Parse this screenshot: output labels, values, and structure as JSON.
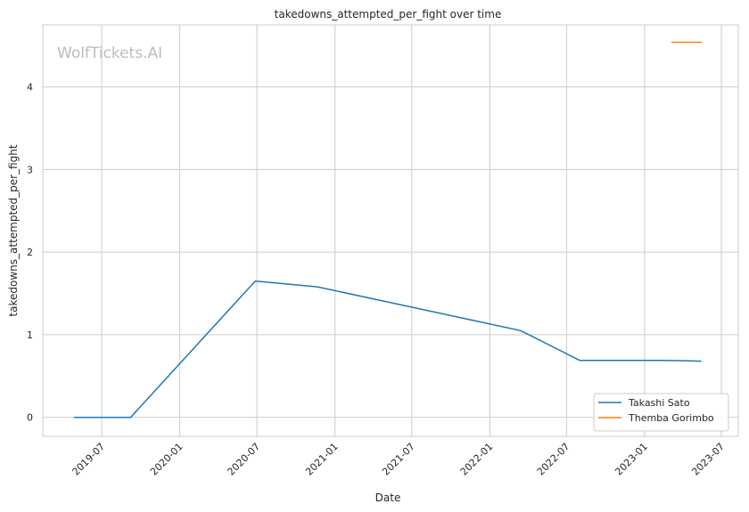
{
  "chart_data": {
    "type": "line",
    "title": "takedowns_attempted_per_fight over time",
    "xlabel": "Date",
    "ylabel": "takedowns_attempted_per_fight",
    "watermark": "WolfTickets.AI",
    "xlim": [
      "2019-02-12",
      "2023-08-10"
    ],
    "ylim": [
      -0.23,
      4.75
    ],
    "x_ticks": [
      "2019-07",
      "2020-01",
      "2020-07",
      "2021-01",
      "2021-07",
      "2022-01",
      "2022-07",
      "2023-01",
      "2023-07"
    ],
    "y_ticks": [
      0,
      1,
      2,
      3,
      4
    ],
    "grid": true,
    "legend_position": "lower-right",
    "series": [
      {
        "name": "Takashi Sato",
        "color": "#1f77b4",
        "x": [
          "2019-04-27",
          "2019-09-07",
          "2020-06-27",
          "2020-11-20",
          "2022-03-15",
          "2022-08-01",
          "2023-02-20",
          "2023-05-15"
        ],
        "y": [
          0,
          0,
          1.65,
          1.58,
          1.05,
          0.69,
          0.69,
          0.68
        ]
      },
      {
        "name": "Themba Gorimbo",
        "color": "#ff7f0e",
        "x": [
          "2023-03-05",
          "2023-05-16"
        ],
        "y": [
          4.54,
          4.54
        ]
      }
    ]
  }
}
